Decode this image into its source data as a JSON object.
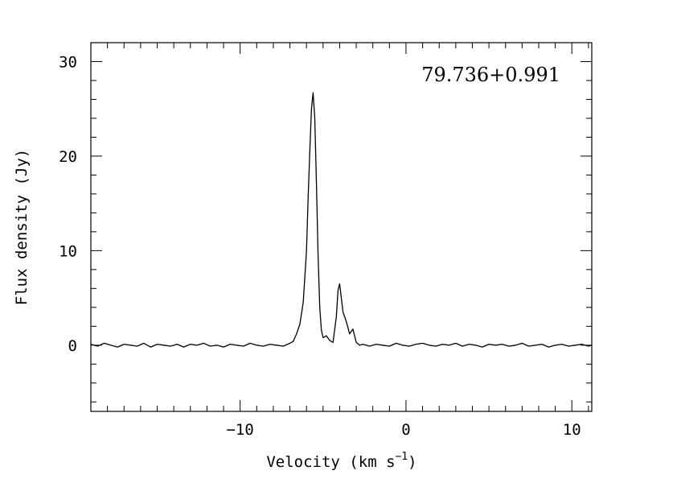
{
  "chart_data": {
    "type": "line",
    "title": "",
    "annotation": "79.736+0.991",
    "xlabel": "Velocity (km s",
    "xlabel_superscript": "−1",
    "xlabel_close": ")",
    "ylabel": "Flux density (Jy)",
    "xlim": [
      -19.0,
      11.2
    ],
    "ylim": [
      -7.0,
      32.0
    ],
    "x_major_ticks": [
      -10,
      0,
      10
    ],
    "x_tick_labels": [
      "−10",
      "0",
      "10"
    ],
    "x_minor_step": 1,
    "y_major_ticks": [
      0,
      10,
      20,
      30
    ],
    "y_tick_labels": [
      "0",
      "10",
      "20",
      "30"
    ],
    "y_minor_step": 2,
    "grid": false,
    "legend": "none",
    "series": [
      {
        "x": [
          -19.0,
          -18.6,
          -18.2,
          -17.8,
          -17.4,
          -17.0,
          -16.6,
          -16.2,
          -15.8,
          -15.4,
          -15.0,
          -14.6,
          -14.2,
          -13.8,
          -13.4,
          -13.0,
          -12.6,
          -12.2,
          -11.8,
          -11.4,
          -11.0,
          -10.6,
          -10.2,
          -9.8,
          -9.4,
          -9.0,
          -8.6,
          -8.2,
          -7.8,
          -7.4,
          -7.0,
          -6.8,
          -6.6,
          -6.4,
          -6.2,
          -6.0,
          -5.9,
          -5.8,
          -5.7,
          -5.6,
          -5.5,
          -5.4,
          -5.3,
          -5.2,
          -5.1,
          -5.0,
          -4.8,
          -4.6,
          -4.4,
          -4.2,
          -4.1,
          -4.0,
          -3.9,
          -3.8,
          -3.6,
          -3.4,
          -3.2,
          -3.0,
          -2.8,
          -2.6,
          -2.2,
          -1.8,
          -1.4,
          -1.0,
          -0.6,
          -0.2,
          0.2,
          0.6,
          1.0,
          1.4,
          1.8,
          2.2,
          2.6,
          3.0,
          3.4,
          3.8,
          4.2,
          4.6,
          5.0,
          5.4,
          5.8,
          6.2,
          6.6,
          7.0,
          7.4,
          7.8,
          8.2,
          8.6,
          9.0,
          9.4,
          9.8,
          10.2,
          10.6,
          11.0,
          11.2
        ],
        "y": [
          0.1,
          -0.1,
          0.2,
          0.0,
          -0.2,
          0.1,
          0.0,
          -0.1,
          0.2,
          -0.2,
          0.1,
          0.0,
          -0.1,
          0.1,
          -0.2,
          0.1,
          0.0,
          0.2,
          -0.1,
          0.0,
          -0.2,
          0.1,
          0.0,
          -0.1,
          0.2,
          0.0,
          -0.1,
          0.1,
          0.0,
          -0.1,
          0.2,
          0.4,
          1.2,
          2.2,
          4.5,
          10.0,
          15.5,
          20.5,
          25.0,
          26.7,
          24.0,
          17.0,
          9.5,
          4.0,
          1.6,
          0.8,
          1.0,
          0.5,
          0.3,
          3.0,
          5.8,
          6.5,
          5.0,
          3.5,
          2.5,
          1.2,
          1.7,
          0.3,
          0.0,
          0.1,
          -0.1,
          0.1,
          0.0,
          -0.1,
          0.2,
          0.0,
          -0.1,
          0.1,
          0.2,
          0.0,
          -0.1,
          0.1,
          0.0,
          0.2,
          -0.1,
          0.1,
          0.0,
          -0.2,
          0.1,
          0.0,
          0.1,
          -0.1,
          0.0,
          0.2,
          -0.1,
          0.0,
          0.1,
          -0.2,
          0.0,
          0.1,
          -0.1,
          0.0,
          0.1,
          -0.1,
          0.0
        ]
      }
    ]
  }
}
